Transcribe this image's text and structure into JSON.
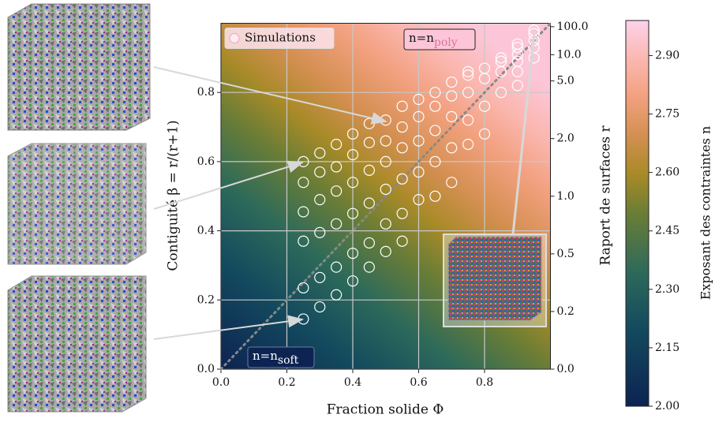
{
  "chart_data": {
    "type": "scatter",
    "xlabel": "Fraction solide Φ",
    "ylabel": "Contiguité β = r/(r+1)",
    "y2label": "Raport de surfaces r",
    "colorbar_label": "Exposant des contraintes   n",
    "xlim": [
      0,
      1
    ],
    "ylim": [
      0,
      1
    ],
    "xticks": [
      {
        "value": 0,
        "label": "0.0"
      },
      {
        "value": 0.2,
        "label": "0.2"
      },
      {
        "value": 0.4,
        "label": "0.4"
      },
      {
        "value": 0.6,
        "label": "0.6"
      },
      {
        "value": 0.8,
        "label": "0.8"
      }
    ],
    "yticks": [
      {
        "value": 0,
        "label": "0.0"
      },
      {
        "value": 0.2,
        "label": "0.2"
      },
      {
        "value": 0.4,
        "label": "0.4"
      },
      {
        "value": 0.6,
        "label": "0.6"
      },
      {
        "value": 0.8,
        "label": "0.8"
      }
    ],
    "y2ticks": [
      {
        "value": 0,
        "label": "0.0"
      },
      {
        "value": 0.2,
        "label": "0.2"
      },
      {
        "value": 0.5,
        "label": "0.5"
      },
      {
        "value": 1,
        "label": "1.0"
      },
      {
        "value": 2,
        "label": "2.0"
      },
      {
        "value": 5,
        "label": "5.0"
      },
      {
        "value": 10,
        "label": "10.0"
      },
      {
        "value": 100,
        "label": "100.0"
      }
    ],
    "clim": [
      2.0,
      2.99
    ],
    "cticks": [
      {
        "value": 2.0,
        "label": "2.00"
      },
      {
        "value": 2.15,
        "label": "2.15"
      },
      {
        "value": 2.3,
        "label": "2.30"
      },
      {
        "value": 2.45,
        "label": "2.45"
      },
      {
        "value": 2.6,
        "label": "2.60"
      },
      {
        "value": 2.75,
        "label": "2.75"
      },
      {
        "value": 2.9,
        "label": "2.90"
      }
    ],
    "grid": true,
    "legend": "upper left",
    "annotations": [
      {
        "text": "n=n",
        "sub": "poly"
      },
      {
        "text": "n=n",
        "sub": "soft"
      }
    ],
    "series": [
      {
        "name": "Simulations",
        "color": "#ffffff",
        "x": [
          0.25,
          0.25,
          0.25,
          0.25,
          0.25,
          0.25,
          0.3,
          0.3,
          0.3,
          0.3,
          0.3,
          0.3,
          0.35,
          0.35,
          0.35,
          0.35,
          0.35,
          0.35,
          0.4,
          0.4,
          0.4,
          0.4,
          0.4,
          0.4,
          0.45,
          0.45,
          0.45,
          0.45,
          0.45,
          0.45,
          0.5,
          0.5,
          0.5,
          0.5,
          0.5,
          0.5,
          0.55,
          0.55,
          0.55,
          0.55,
          0.55,
          0.55,
          0.6,
          0.6,
          0.6,
          0.6,
          0.6,
          0.65,
          0.65,
          0.65,
          0.65,
          0.65,
          0.7,
          0.7,
          0.7,
          0.7,
          0.7,
          0.75,
          0.75,
          0.75,
          0.75,
          0.75,
          0.8,
          0.8,
          0.8,
          0.8,
          0.85,
          0.85,
          0.85,
          0.85,
          0.9,
          0.9,
          0.9,
          0.9,
          0.9,
          0.9,
          0.95,
          0.95,
          0.95,
          0.95,
          0.95
        ],
        "values": [
          0.145,
          0.235,
          0.37,
          0.455,
          0.54,
          0.6,
          0.18,
          0.265,
          0.395,
          0.49,
          0.57,
          0.625,
          0.215,
          0.295,
          0.42,
          0.515,
          0.585,
          0.65,
          0.255,
          0.335,
          0.45,
          0.54,
          0.62,
          0.68,
          0.295,
          0.365,
          0.48,
          0.575,
          0.655,
          0.71,
          0.34,
          0.42,
          0.52,
          0.6,
          0.66,
          0.72,
          0.37,
          0.45,
          0.55,
          0.64,
          0.7,
          0.76,
          0.49,
          0.57,
          0.66,
          0.73,
          0.78,
          0.5,
          0.6,
          0.69,
          0.76,
          0.8,
          0.54,
          0.64,
          0.73,
          0.79,
          0.83,
          0.65,
          0.72,
          0.8,
          0.85,
          0.86,
          0.68,
          0.76,
          0.84,
          0.87,
          0.8,
          0.86,
          0.89,
          0.9,
          0.82,
          0.86,
          0.89,
          0.91,
          0.93,
          0.94,
          0.9,
          0.93,
          0.95,
          0.97,
          0.98
        ]
      }
    ]
  }
}
